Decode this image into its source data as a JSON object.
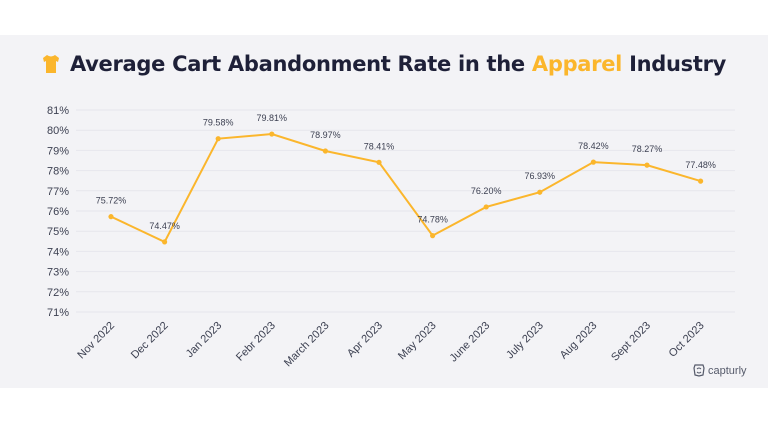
{
  "title": {
    "prefix": "Average Cart Abandonment Rate in the ",
    "highlight": "Apparel",
    "suffix": " Industry",
    "icon": "tshirt-icon"
  },
  "brand": {
    "name": "capturly",
    "icon": "capturly-logo-icon"
  },
  "colors": {
    "line": "#fbb62c",
    "title": "#1e2038",
    "highlight": "#fbb62c",
    "background": "#f3f3f6",
    "grid": "#e6e6ec",
    "text": "#3d4152"
  },
  "chart_data": {
    "type": "line",
    "title": "Average Cart Abandonment Rate in the Apparel Industry",
    "xlabel": "",
    "ylabel": "",
    "categories": [
      "Nov 2022",
      "Dec 2022",
      "Jan 2023",
      "Febr 2023",
      "March 2023",
      "Apr 2023",
      "May 2023",
      "June 2023",
      "July 2023",
      "Aug 2023",
      "Sept 2023",
      "Oct 2023"
    ],
    "values": [
      75.72,
      74.47,
      79.58,
      79.81,
      78.97,
      78.41,
      74.78,
      76.2,
      76.93,
      78.42,
      78.27,
      77.48
    ],
    "data_labels": [
      "75.72%",
      "74.47%",
      "79.58%",
      "79.81%",
      "78.97%",
      "78.41%",
      "74.78%",
      "76.20%",
      "76.93%",
      "78.42%",
      "78.27%",
      "77.48%"
    ],
    "yticks": [
      "71%",
      "72%",
      "73%",
      "74%",
      "75%",
      "76%",
      "77%",
      "78%",
      "79%",
      "80%",
      "81%"
    ],
    "ylim": [
      71,
      81
    ],
    "grid": true,
    "legend": "none"
  }
}
